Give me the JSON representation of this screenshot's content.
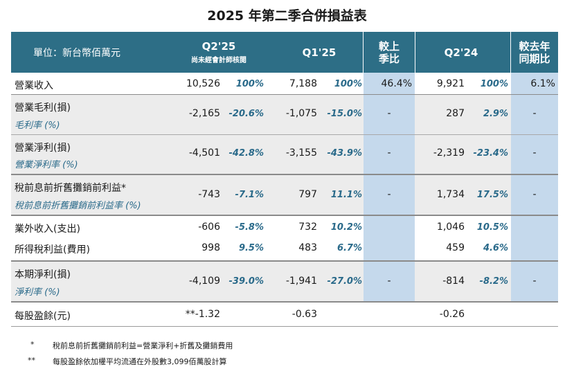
{
  "title": "2025 年第二季合併損益表",
  "header": {
    "unit": "單位：新台幣佰萬元",
    "q2_25": "Q2'25",
    "q2_25_note": "尚未經會計師核閱",
    "q1_25": "Q1'25",
    "qoq_line1": "較上",
    "qoq_line2": "季比",
    "q2_24": "Q2'24",
    "yoy_line1": "較去年",
    "yoy_line2": "同期比"
  },
  "rows": [
    {
      "label": "營業收入",
      "q2_25": "10,526",
      "q2_25_pct": "100%",
      "q1_25": "7,188",
      "q1_25_pct": "100%",
      "qoq": "46.4%",
      "q2_24": "9,921",
      "q2_24_pct": "100%",
      "yoy": "6.1%"
    },
    {
      "label": "營業毛利(損)",
      "sublabel": "毛利率 (%)",
      "q2_25": "-2,165",
      "q2_25_pct": "-20.6%",
      "q1_25": "-1,075",
      "q1_25_pct": "-15.0%",
      "qoq": "-",
      "q2_24": "287",
      "q2_24_pct": "2.9%",
      "yoy": "-"
    },
    {
      "label": "營業淨利(損)",
      "sublabel": "營業淨利率 (%)",
      "q2_25": "-4,501",
      "q2_25_pct": "-42.8%",
      "q1_25": "-3,155",
      "q1_25_pct": "-43.9%",
      "qoq": "-",
      "q2_24": "-2,319",
      "q2_24_pct": "-23.4%",
      "yoy": "-"
    },
    {
      "label": "稅前息前折舊攤銷前利益*",
      "sublabel": "稅前息前折舊攤銷前利益率 (%)",
      "q2_25": "-743",
      "q2_25_pct": "-7.1%",
      "q1_25": "797",
      "q1_25_pct": "11.1%",
      "qoq": "-",
      "q2_24": "1,734",
      "q2_24_pct": "17.5%",
      "yoy": "-"
    },
    {
      "label": "業外收入(支出)",
      "q2_25": "-606",
      "q2_25_pct": "-5.8%",
      "q1_25": "732",
      "q1_25_pct": "10.2%",
      "q2_24": "1,046",
      "q2_24_pct": "10.5%"
    },
    {
      "label": "所得稅利益(費用)",
      "q2_25": "998",
      "q2_25_pct": "9.5%",
      "q1_25": "483",
      "q1_25_pct": "6.7%",
      "q2_24": "459",
      "q2_24_pct": "4.6%"
    },
    {
      "label": "本期淨利(損)",
      "sublabel": "淨利率 (%)",
      "q2_25": "-4,109",
      "q2_25_pct": "-39.0%",
      "q1_25": "-1,941",
      "q1_25_pct": "-27.0%",
      "qoq": "-",
      "q2_24": "-814",
      "q2_24_pct": "-8.2%",
      "yoy": "-"
    },
    {
      "label": "每股盈餘(元)",
      "q2_25": "**-1.32",
      "q1_25": "-0.63",
      "q2_24": "-0.26"
    }
  ],
  "footnotes": [
    {
      "mark": "*",
      "text": "稅前息前折舊攤銷前利益=營業淨利+折舊及攤銷費用"
    },
    {
      "mark": "**",
      "text": "每股盈餘依加權平均流通在外股數3,099佰萬股計算"
    }
  ]
}
